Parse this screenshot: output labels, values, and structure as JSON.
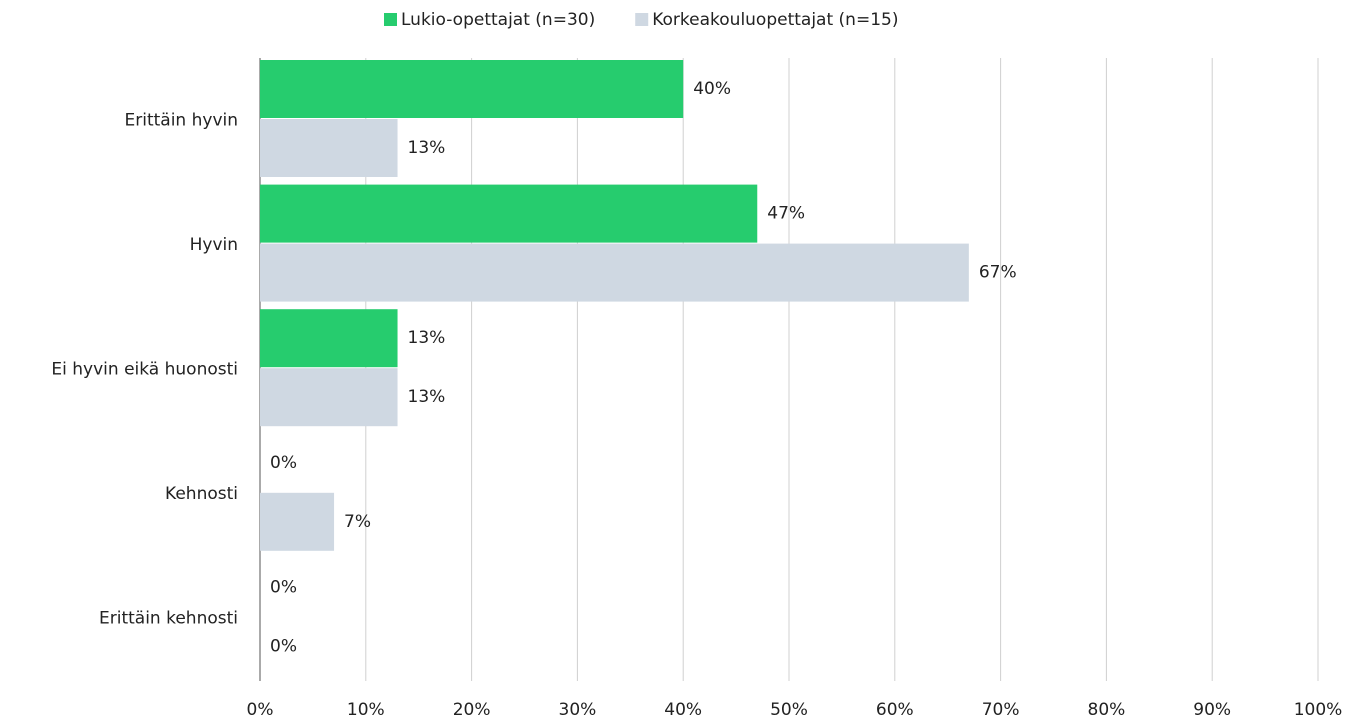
{
  "chart_data": {
    "type": "bar",
    "orientation": "horizontal",
    "categories": [
      "Erittäin hyvin",
      "Hyvin",
      "Ei hyvin eikä huonosti",
      "Kehnosti",
      "Erittäin kehnosti"
    ],
    "series": [
      {
        "name": "Lukio-opettajat (n=30)",
        "color": "#26cc6e",
        "values": [
          40,
          47,
          13,
          0,
          0
        ],
        "value_labels": [
          "40%",
          "47%",
          "13%",
          "0%",
          "0%"
        ]
      },
      {
        "name": "Korkeakouluopettajat (n=15)",
        "color": "#cfd8e2",
        "values": [
          13,
          67,
          13,
          7,
          0
        ],
        "value_labels": [
          "13%",
          "67%",
          "13%",
          "7%",
          "0%"
        ]
      }
    ],
    "xlim": [
      0,
      100
    ],
    "xticks": [
      {
        "value": 0,
        "label": "0%"
      },
      {
        "value": 10,
        "label": "10%"
      },
      {
        "value": 20,
        "label": "20%"
      },
      {
        "value": 30,
        "label": "30%"
      },
      {
        "value": 40,
        "label": "40%"
      },
      {
        "value": 50,
        "label": "50%"
      },
      {
        "value": 60,
        "label": "60%"
      },
      {
        "value": 70,
        "label": "70%"
      },
      {
        "value": 80,
        "label": "80%"
      },
      {
        "value": 90,
        "label": "90%"
      },
      {
        "value": 100,
        "label": "100%"
      }
    ],
    "grid": true,
    "legend": "top"
  }
}
